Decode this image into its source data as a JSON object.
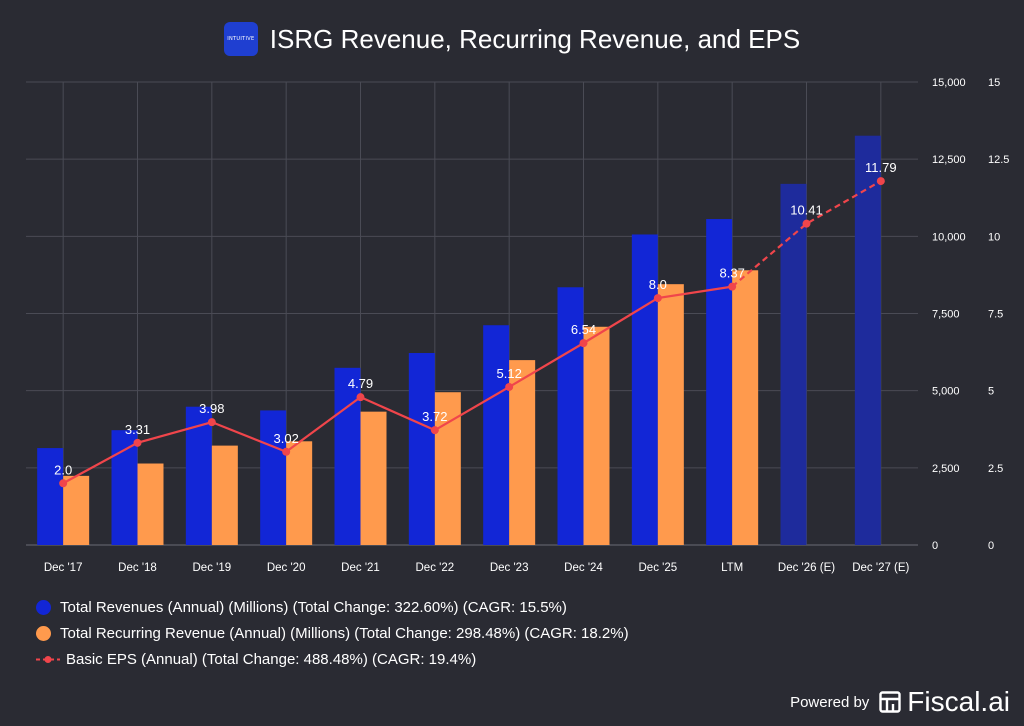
{
  "header": {
    "logo_text": "INTUITIVE",
    "title": "ISRG Revenue, Recurring Revenue, and EPS"
  },
  "colors": {
    "background": "#2a2b33",
    "revenue": "#1226d6",
    "revenue_estimate": "#1e2b9c",
    "recurring": "#ff9a4d",
    "eps": "#f0454b",
    "grid": "#4a4b55",
    "text": "#ffffff"
  },
  "chart_data": {
    "type": "bar",
    "categories": [
      "Dec '17",
      "Dec '18",
      "Dec '19",
      "Dec '20",
      "Dec '21",
      "Dec '22",
      "Dec '23",
      "Dec '24",
      "Dec '25",
      "LTM",
      "Dec '26 (E)",
      "Dec '27 (E)"
    ],
    "estimate_categories": [
      "Dec '26 (E)",
      "Dec '27 (E)"
    ],
    "left_axis": {
      "ylim": [
        0,
        15000
      ],
      "ticks": [
        "0",
        "2,500",
        "5,000",
        "7,500",
        "10,000",
        "12,500",
        "15,000"
      ]
    },
    "right_axis": {
      "ylim": [
        0,
        15
      ],
      "ticks": [
        "0",
        "2.5",
        "5",
        "7.5",
        "10",
        "12.5",
        "15"
      ]
    },
    "grid": true,
    "legend_position": "bottom-left",
    "series": [
      {
        "name": "Total Revenues (Annual) (Millions) (Total Change: 322.60%) (CAGR: 15.5%)",
        "type": "bar",
        "axis": "left",
        "values": [
          3140,
          3720,
          4480,
          4360,
          5740,
          6220,
          7120,
          8350,
          10060,
          10560,
          11700,
          13260
        ]
      },
      {
        "name": "Total Recurring Revenue (Annual) (Millions) (Total Change: 298.48%) (CAGR: 18.2%)",
        "type": "bar",
        "axis": "left",
        "values": [
          2240,
          2640,
          3220,
          3360,
          4320,
          4950,
          5990,
          7070,
          8450,
          8900,
          null,
          null
        ]
      },
      {
        "name": "Basic EPS (Annual) (Total Change: 488.48%) (CAGR: 19.4%)",
        "type": "line",
        "axis": "right",
        "values": [
          2.0,
          3.31,
          3.98,
          3.02,
          4.79,
          3.72,
          5.12,
          6.54,
          8.0,
          8.37,
          10.41,
          11.79
        ],
        "labels": [
          "2.0",
          "3.31",
          "3.98",
          "3.02",
          "4.79",
          "3.72",
          "5.12",
          "6.54",
          "8.0",
          "8.37",
          "10.41",
          "11.79"
        ]
      }
    ]
  },
  "footer": {
    "powered_by": "Powered by",
    "brand": "Fiscal.ai"
  }
}
